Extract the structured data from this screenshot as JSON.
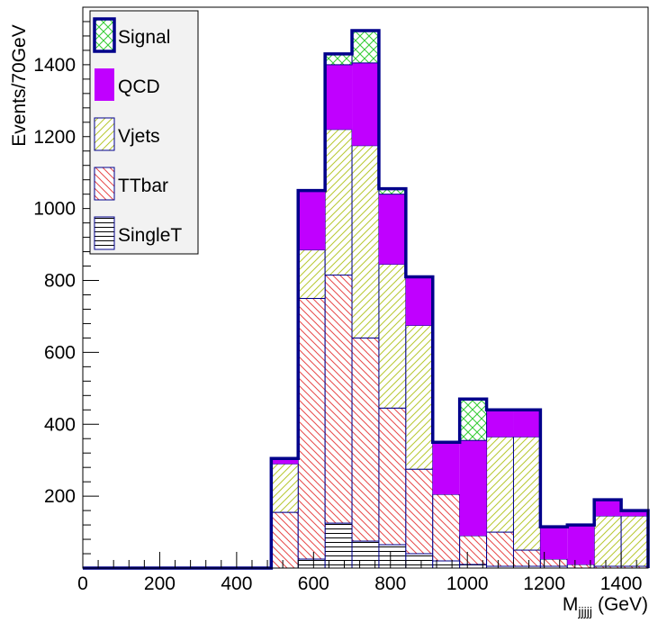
{
  "chart_data": {
    "type": "bar",
    "stacked": true,
    "ylabel": "Events/70GeV",
    "xlabel": "M",
    "xlabel_sub": "jjjjj",
    "xlabel_unit": "(GeV)",
    "xlim": [
      0,
      1470
    ],
    "ylim": [
      0,
      1560
    ],
    "x_ticks": [
      0,
      200,
      400,
      600,
      800,
      1000,
      1200,
      1400
    ],
    "y_ticks": [
      200,
      400,
      600,
      800,
      1000,
      1200,
      1400
    ],
    "bin_edges": [
      0,
      70,
      140,
      210,
      280,
      350,
      420,
      490,
      560,
      630,
      700,
      770,
      840,
      910,
      980,
      1050,
      1120,
      1190,
      1260,
      1330,
      1400,
      1470
    ],
    "series": [
      {
        "name": "SingleT",
        "color": "#000000",
        "pattern": "horizontal",
        "values": [
          0,
          0,
          0,
          0,
          0,
          0,
          0,
          0,
          25,
          125,
          75,
          65,
          40,
          20,
          10,
          5,
          5,
          5,
          0,
          0,
          0
        ]
      },
      {
        "name": "TTbar",
        "color": "#e84a4a",
        "pattern": "diagonal-down",
        "values": [
          0,
          0,
          0,
          0,
          0,
          0,
          0,
          155,
          725,
          690,
          565,
          380,
          235,
          185,
          80,
          95,
          45,
          20,
          10,
          5,
          5
        ]
      },
      {
        "name": "Vjets",
        "color": "#b8c832",
        "pattern": "diagonal-up",
        "values": [
          0,
          0,
          0,
          0,
          0,
          0,
          0,
          135,
          135,
          405,
          535,
          400,
          400,
          0,
          0,
          265,
          315,
          0,
          0,
          140,
          140
        ]
      },
      {
        "name": "QCD",
        "color": "#c000ff",
        "pattern": "solid",
        "values": [
          0,
          0,
          0,
          0,
          0,
          0,
          0,
          15,
          165,
          180,
          230,
          195,
          135,
          145,
          265,
          75,
          75,
          90,
          110,
          45,
          15
        ]
      },
      {
        "name": "Signal",
        "color": "#33cc33",
        "pattern": "crosshatch",
        "values": [
          0,
          0,
          0,
          0,
          0,
          0,
          0,
          0,
          0,
          30,
          90,
          15,
          0,
          0,
          115,
          0,
          0,
          0,
          0,
          0,
          0
        ]
      }
    ],
    "total_outline_color": "#00008b",
    "legend": {
      "placement": "top-left",
      "order": [
        "Signal",
        "QCD",
        "Vjets",
        "TTbar",
        "SingleT"
      ]
    },
    "grid": false
  }
}
